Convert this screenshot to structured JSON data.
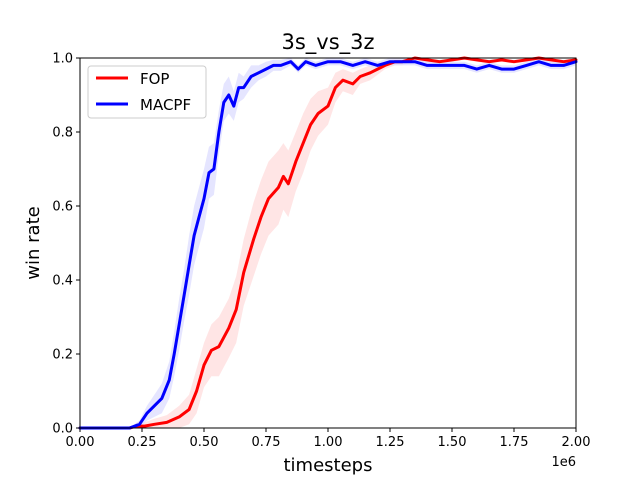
{
  "chart_data": {
    "type": "line",
    "title": "3s_vs_3z",
    "xlabel": "timesteps",
    "ylabel": "win rate",
    "x_offset_label": "1e6",
    "xlim": [
      0,
      2.0
    ],
    "ylim": [
      0,
      1.0
    ],
    "xticks": [
      "0.00",
      "0.25",
      "0.50",
      "0.75",
      "1.00",
      "1.25",
      "1.50",
      "1.75",
      "2.00"
    ],
    "yticks": [
      "0.0",
      "0.2",
      "0.4",
      "0.6",
      "0.8",
      "1.0"
    ],
    "grid": false,
    "legend_position": "upper-left",
    "series": [
      {
        "name": "FOP",
        "color": "#ff0000",
        "band_color": "#ffdcdc",
        "x": [
          0,
          0.2,
          0.23,
          0.26,
          0.3,
          0.35,
          0.4,
          0.44,
          0.47,
          0.5,
          0.53,
          0.56,
          0.6,
          0.63,
          0.66,
          0.7,
          0.73,
          0.76,
          0.8,
          0.82,
          0.84,
          0.87,
          0.9,
          0.93,
          0.96,
          1.0,
          1.03,
          1.06,
          1.1,
          1.13,
          1.17,
          1.2,
          1.23,
          1.27,
          1.3,
          1.35,
          1.4,
          1.45,
          1.5,
          1.55,
          1.6,
          1.65,
          1.7,
          1.75,
          1.8,
          1.85,
          1.9,
          1.95,
          2.0
        ],
        "y": [
          0,
          0.0,
          0.005,
          0.005,
          0.01,
          0.015,
          0.03,
          0.05,
          0.1,
          0.17,
          0.21,
          0.22,
          0.27,
          0.32,
          0.42,
          0.51,
          0.57,
          0.62,
          0.65,
          0.68,
          0.66,
          0.72,
          0.77,
          0.82,
          0.85,
          0.87,
          0.92,
          0.94,
          0.93,
          0.95,
          0.96,
          0.97,
          0.98,
          0.99,
          0.99,
          1.0,
          0.995,
          0.99,
          0.995,
          1.0,
          0.995,
          0.99,
          0.995,
          0.99,
          0.995,
          1.0,
          0.995,
          0.99,
          0.995
        ],
        "band": [
          0,
          0.0,
          0.01,
          0.01,
          0.015,
          0.02,
          0.03,
          0.04,
          0.06,
          0.06,
          0.07,
          0.08,
          0.08,
          0.09,
          0.09,
          0.1,
          0.1,
          0.1,
          0.1,
          0.09,
          0.09,
          0.08,
          0.08,
          0.07,
          0.06,
          0.05,
          0.04,
          0.03,
          0.03,
          0.02,
          0.02,
          0.015,
          0.01,
          0.01,
          0.01,
          0.005,
          0.005,
          0.005,
          0.005,
          0.005,
          0.005,
          0.005,
          0.005,
          0.005,
          0.005,
          0.005,
          0.005,
          0.005,
          0.005
        ]
      },
      {
        "name": "MACPF",
        "color": "#0000ff",
        "band_color": "#dcdcff",
        "x": [
          0,
          0.2,
          0.24,
          0.27,
          0.3,
          0.33,
          0.36,
          0.38,
          0.4,
          0.42,
          0.44,
          0.46,
          0.48,
          0.5,
          0.52,
          0.54,
          0.56,
          0.58,
          0.6,
          0.62,
          0.64,
          0.66,
          0.69,
          0.72,
          0.75,
          0.78,
          0.81,
          0.85,
          0.88,
          0.91,
          0.95,
          1.0,
          1.05,
          1.1,
          1.15,
          1.2,
          1.25,
          1.3,
          1.35,
          1.4,
          1.45,
          1.5,
          1.55,
          1.6,
          1.65,
          1.7,
          1.75,
          1.8,
          1.85,
          1.9,
          1.95,
          2.0
        ],
        "y": [
          0,
          0.0,
          0.01,
          0.04,
          0.06,
          0.08,
          0.13,
          0.2,
          0.28,
          0.36,
          0.44,
          0.52,
          0.57,
          0.62,
          0.69,
          0.7,
          0.8,
          0.88,
          0.9,
          0.87,
          0.92,
          0.92,
          0.95,
          0.96,
          0.97,
          0.98,
          0.98,
          0.99,
          0.97,
          0.99,
          0.98,
          0.99,
          0.99,
          0.98,
          0.99,
          0.98,
          0.99,
          0.99,
          0.99,
          0.98,
          0.98,
          0.98,
          0.98,
          0.97,
          0.98,
          0.97,
          0.97,
          0.98,
          0.99,
          0.98,
          0.98,
          0.99
        ],
        "band": [
          0,
          0.0,
          0.01,
          0.02,
          0.03,
          0.04,
          0.05,
          0.06,
          0.07,
          0.07,
          0.08,
          0.08,
          0.08,
          0.08,
          0.07,
          0.07,
          0.06,
          0.05,
          0.05,
          0.04,
          0.04,
          0.03,
          0.03,
          0.02,
          0.02,
          0.015,
          0.015,
          0.01,
          0.01,
          0.01,
          0.01,
          0.01,
          0.01,
          0.01,
          0.01,
          0.01,
          0.01,
          0.01,
          0.01,
          0.01,
          0.01,
          0.01,
          0.01,
          0.01,
          0.01,
          0.01,
          0.01,
          0.01,
          0.01,
          0.01,
          0.01,
          0.01
        ]
      }
    ]
  }
}
